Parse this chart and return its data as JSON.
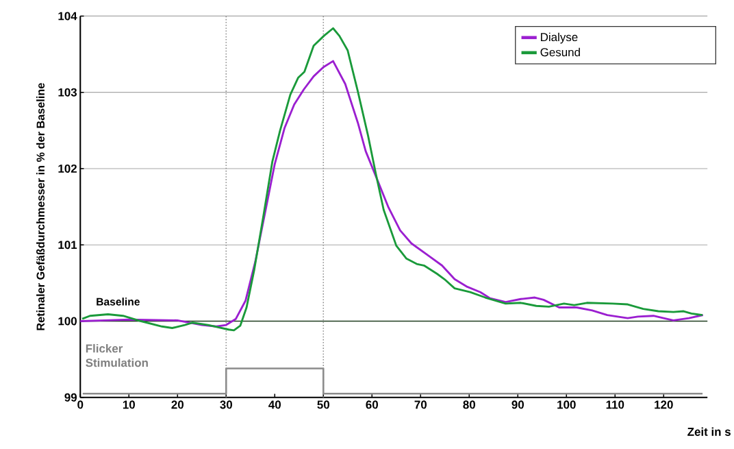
{
  "chart_data": {
    "type": "line",
    "xlabel": "Zeit in s",
    "ylabel": "Retinaler Gefäßdurchmesser in % der Baseline",
    "xlim": [
      0,
      129
    ],
    "ylim": [
      99,
      104
    ],
    "xticks": [
      0,
      10,
      20,
      30,
      40,
      50,
      60,
      70,
      80,
      90,
      100,
      110,
      120
    ],
    "yticks": [
      99,
      100,
      101,
      102,
      103,
      104
    ],
    "grid": "y",
    "legend": "top right",
    "series": [
      {
        "name": "Dialyse",
        "color": "#9b1fd0",
        "x": [
          0,
          5,
          10,
          20,
          25,
          28,
          30,
          32,
          34,
          36,
          38,
          40,
          42,
          44,
          46,
          48,
          50,
          52,
          54.5,
          57.1,
          58.7,
          60.8,
          63.4,
          65.8,
          68.1,
          71.8,
          74.4,
          77,
          79.6,
          82.3,
          84.3,
          87.5,
          90.6,
          93.5,
          95.3,
          98.5,
          102.1,
          105.3,
          108.4,
          112.6,
          114.7,
          117.9,
          120,
          122,
          125.2,
          128.1
        ],
        "values": [
          100.0,
          100.01,
          100.02,
          100.01,
          99.95,
          99.93,
          99.95,
          100.03,
          100.27,
          100.78,
          101.42,
          102.06,
          102.53,
          102.84,
          103.04,
          103.21,
          103.33,
          103.41,
          103.11,
          102.6,
          102.23,
          101.9,
          101.49,
          101.19,
          101.02,
          100.85,
          100.73,
          100.55,
          100.45,
          100.38,
          100.3,
          100.25,
          100.29,
          100.31,
          100.28,
          100.18,
          100.18,
          100.14,
          100.08,
          100.04,
          100.06,
          100.07,
          100.04,
          100.01,
          100.04,
          100.08
        ]
      },
      {
        "name": "Gesund",
        "color": "#1a9a3a",
        "x": [
          0.4,
          2,
          5.7,
          8.8,
          12.5,
          16.8,
          18.9,
          21.5,
          23.1,
          26.3,
          28.4,
          30.5,
          31.6,
          32.9,
          34.2,
          35.8,
          37.7,
          39.5,
          41.1,
          43.2,
          44.8,
          46.1,
          48,
          50.1,
          52,
          53.3,
          55,
          57.1,
          59.2,
          60.8,
          62.4,
          65,
          67.1,
          69.2,
          70.7,
          73.4,
          74.9,
          77,
          80.2,
          83.3,
          87.5,
          90.6,
          93.8,
          96.4,
          99.5,
          101.6,
          104.2,
          109.5,
          112.6,
          115.8,
          118.9,
          122,
          124.1,
          125.7,
          128
        ],
        "values": [
          100.03,
          100.07,
          100.09,
          100.07,
          100.0,
          99.93,
          99.91,
          99.95,
          99.98,
          99.95,
          99.92,
          99.89,
          99.88,
          99.94,
          100.18,
          100.68,
          101.39,
          102.09,
          102.5,
          102.97,
          103.19,
          103.27,
          103.61,
          103.74,
          103.84,
          103.74,
          103.55,
          103.01,
          102.43,
          101.93,
          101.46,
          100.99,
          100.82,
          100.75,
          100.73,
          100.62,
          100.55,
          100.43,
          100.38,
          100.31,
          100.23,
          100.24,
          100.2,
          100.19,
          100.23,
          100.21,
          100.24,
          100.23,
          100.22,
          100.16,
          100.13,
          100.12,
          100.13,
          100.1,
          100.08
        ]
      },
      {
        "type": "step",
        "color": "#8c8c8c",
        "x": [
          0.5,
          30,
          50,
          128
        ],
        "values": [
          99.05,
          99.38,
          99.05,
          99.05
        ]
      }
    ],
    "ref_lines": [
      {
        "axis": "y",
        "value": 100,
        "label": "Baseline",
        "color": "#1f3d1f",
        "line_style": "solid"
      },
      {
        "axis": "x",
        "value": 30,
        "color": "#8c8c8c",
        "line_style": "dotted"
      },
      {
        "axis": "x",
        "value": 50,
        "color": "#8c8c8c",
        "line_style": "dotted"
      }
    ],
    "annotations": [
      "Flicker Stimulation"
    ]
  }
}
